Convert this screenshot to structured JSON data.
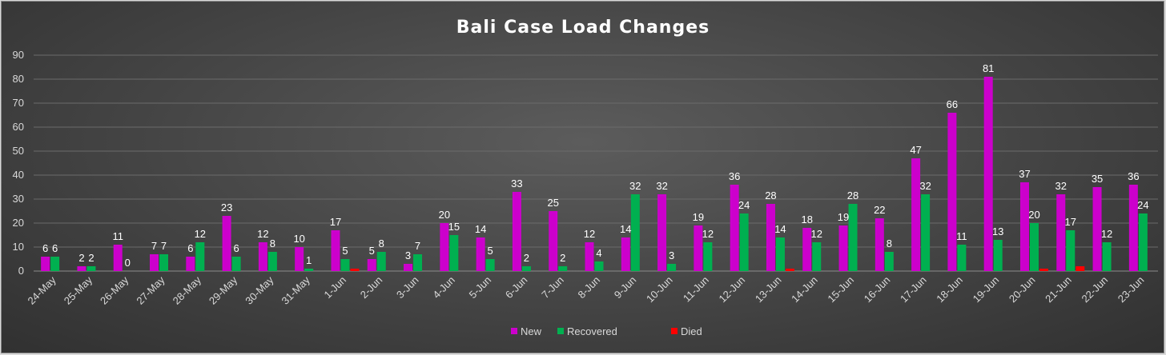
{
  "chart_data": {
    "type": "bar",
    "title": "Bali Case Load Changes",
    "xlabel": "",
    "ylabel": "",
    "ylim": [
      0,
      90
    ],
    "yticks": [
      0,
      10,
      20,
      30,
      40,
      50,
      60,
      70,
      80,
      90
    ],
    "grid": true,
    "legend_position": "bottom",
    "categories": [
      "24-May",
      "25-May",
      "26-May",
      "27-May",
      "28-May",
      "29-May",
      "30-May",
      "31-May",
      "1-Jun",
      "2-Jun",
      "3-Jun",
      "4-Jun",
      "5-Jun",
      "6-Jun",
      "7-Jun",
      "8-Jun",
      "9-Jun",
      "10-Jun",
      "11-Jun",
      "12-Jun",
      "13-Jun",
      "14-Jun",
      "15-Jun",
      "16-Jun",
      "17-Jun",
      "18-Jun",
      "19-Jun",
      "20-Jun",
      "21-Jun",
      "22-Jun",
      "23-Jun"
    ],
    "series": [
      {
        "name": "New",
        "color": "#cc00cc",
        "values": [
          6,
          2,
          11,
          7,
          6,
          23,
          12,
          10,
          17,
          5,
          3,
          20,
          14,
          33,
          25,
          12,
          14,
          32,
          19,
          36,
          28,
          18,
          19,
          22,
          47,
          66,
          81,
          37,
          32,
          35,
          36
        ],
        "labels": [
          "6",
          "2",
          "11",
          "7",
          "6",
          "23",
          "12",
          "10",
          "17",
          "5",
          "3",
          "20",
          "14",
          "33",
          "25",
          "12",
          "14",
          "32",
          "19",
          "36",
          "28",
          "18",
          "19",
          "22",
          "47",
          "66",
          "81",
          "37",
          "32",
          "35",
          "36"
        ]
      },
      {
        "name": "Recovered",
        "color": "#00b050",
        "values": [
          6,
          2,
          0,
          7,
          12,
          6,
          8,
          1,
          5,
          8,
          7,
          15,
          5,
          2,
          2,
          4,
          32,
          3,
          12,
          24,
          14,
          12,
          28,
          8,
          32,
          11,
          13,
          20,
          17,
          12,
          24
        ],
        "labels": [
          "6",
          "2",
          "0",
          "7",
          "12",
          "6",
          "8",
          "1",
          "5",
          "8",
          "7",
          "15",
          "5",
          "2",
          "2",
          "4",
          "32",
          "3",
          "12",
          "24",
          "14",
          "12",
          "28",
          "8",
          "32",
          "11",
          "13",
          "20",
          "17",
          "12",
          "24"
        ]
      },
      {
        "name": "Died",
        "color": "#ff0000",
        "values": [
          0,
          0,
          0,
          0,
          0,
          0,
          0,
          0,
          1,
          0,
          0,
          0,
          0,
          0,
          0,
          0,
          0,
          0,
          0,
          0,
          1,
          0,
          0,
          0,
          0,
          0,
          0,
          1,
          2,
          0,
          0
        ],
        "labels": []
      }
    ]
  }
}
